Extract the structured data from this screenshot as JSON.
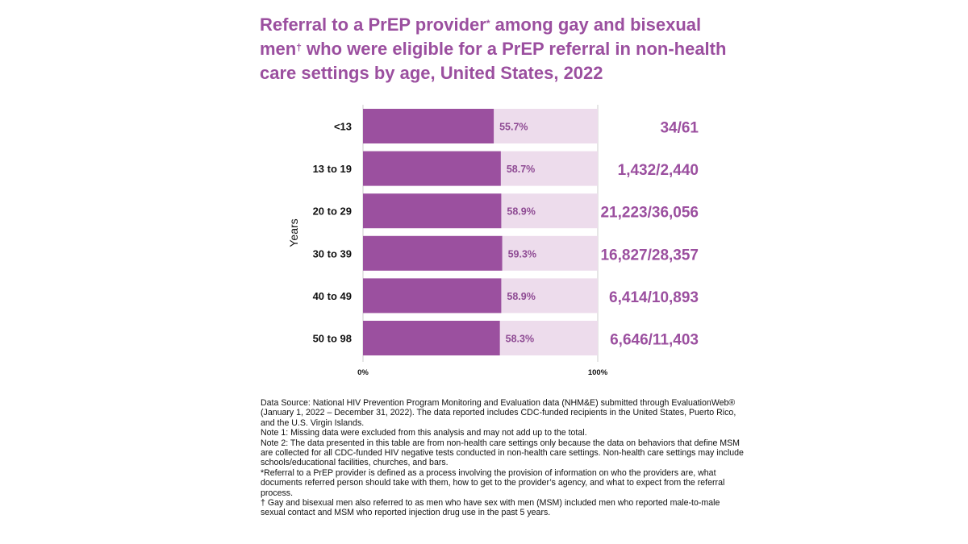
{
  "title": {
    "part1": "Referral to a PrEP provider",
    "mark1": "*",
    "part2": " among gay and bisexual men",
    "mark2": "†",
    "part3": " who were eligible for a PrEP referral in non-health care settings by age, United States, 2022"
  },
  "colors": {
    "accent": "#9b4f9f",
    "bar": "#9b509f",
    "bar_track": "#eddcec",
    "pct_label": "#8e4a93",
    "text": "#111111"
  },
  "chart_data": {
    "type": "bar",
    "orientation": "horizontal",
    "ylabel": "Years",
    "categories": [
      "<13",
      "13 to 19",
      "20 to 29",
      "30 to 39",
      "40 to 49",
      "50 to 98"
    ],
    "values": [
      55.7,
      58.7,
      58.9,
      59.3,
      58.9,
      58.3
    ],
    "value_labels": [
      "55.7%",
      "58.7%",
      "58.9%",
      "59.3%",
      "58.9%",
      "58.3%"
    ],
    "counts": [
      "34/61",
      "1,432/2,440",
      "21,223/36,056",
      "16,827/28,357",
      "6,414/10,893",
      "6,646/11,403"
    ],
    "xlim": [
      0,
      100
    ],
    "xticks": [
      "0%",
      "100%"
    ],
    "grid": false,
    "legend": "none"
  },
  "notes": [
    "Data Source: National HIV Prevention Program Monitoring and Evaluation data (NHM&E) submitted through EvaluationWeb® (January 1, 2022 – December 31, 2022). The data reported includes CDC-funded recipients in the United States, Puerto Rico, and the U.S. Virgin Islands.",
    "Note 1: Missing data were excluded from this analysis and may not add up to the total.",
    "Note 2: The data presented in this table are from non-health care settings only because the data on behaviors that define MSM are collected for all CDC-funded HIV negative tests conducted in non-health care settings. Non-health care settings may include schools/educational facilities, churches, and bars.",
    "*Referral to a PrEP provider is defined as a process involving the provision of information on who the providers are, what documents referred person should take with them, how to get to the provider’s agency, and what to expect from the referral process.",
    "† Gay and bisexual men also referred to as men who have sex with men (MSM) included men who reported male-to-male sexual contact and MSM who reported injection drug use in the past 5 years."
  ]
}
